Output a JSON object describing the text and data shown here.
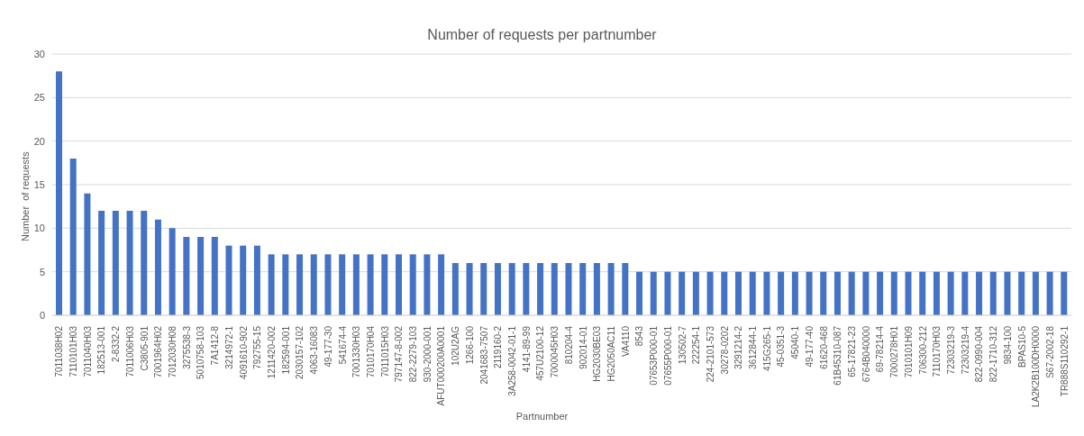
{
  "chart_data": {
    "type": "bar",
    "title": "Number of requests per partnumber",
    "xlabel": "Partnumber",
    "ylabel": "Number  of requests",
    "categories": [
      "7011038H02",
      "7110101H03",
      "7011040H03",
      "182513-001",
      "2-8332-2",
      "7011006H03",
      "C3805-901",
      "7001964H02",
      "7012030H08",
      "3275538-3",
      "5010758-103",
      "7A1412-8",
      "3214972-1",
      "4091610-902",
      "792755-15",
      "1211420-002",
      "182594-001",
      "2030157-102",
      "4063-16083",
      "49-177-30",
      "541674-4",
      "7001330H03",
      "7010170H04",
      "7011015H03",
      "797147-8-002",
      "822-2279-103",
      "930-2000-001",
      "AFUT000200A0001",
      "102U2AG",
      "1266-100",
      "2041683-7507",
      "2119160-2",
      "3A258-0042-01-1",
      "4141-89-99",
      "457U2100-12",
      "7000045H03",
      "810204-4",
      "902014-01",
      "HG2030BE03",
      "HG2050AC11",
      "VA4110",
      "8543",
      "07653P000-01",
      "07655P000-01",
      "130502-7",
      "222254-1",
      "224-2101-573",
      "30278-0202",
      "3291214-2",
      "3612844-1",
      "415G265-1",
      "45-0351-3",
      "45040-1",
      "49-177-40",
      "61620-468",
      "61B45310-087",
      "65-17821-23",
      "6764B040000",
      "69-78214-4",
      "7000278H01",
      "7010101H09",
      "706300-212",
      "7110170H03",
      "72303219-3",
      "72303219-4",
      "822-0990-004",
      "822-1710-312",
      "9834-100",
      "BPAS10-5",
      "LA2K2B100DH0000",
      "S67-2002-18",
      "TR888S110292-1"
    ],
    "values": [
      28,
      18,
      14,
      12,
      12,
      12,
      12,
      11,
      10,
      9,
      9,
      9,
      8,
      8,
      8,
      7,
      7,
      7,
      7,
      7,
      7,
      7,
      7,
      7,
      7,
      7,
      7,
      7,
      6,
      6,
      6,
      6,
      6,
      6,
      6,
      6,
      6,
      6,
      6,
      6,
      6,
      5,
      5,
      5,
      5,
      5,
      5,
      5,
      5,
      5,
      5,
      5,
      5,
      5,
      5,
      5,
      5,
      5,
      5,
      5,
      5,
      5,
      5,
      5,
      5,
      5,
      5,
      5,
      5,
      5,
      5,
      5
    ],
    "color": "#4472c4",
    "ylim": [
      0,
      30
    ],
    "yticks": [
      0,
      5,
      10,
      15,
      20,
      25,
      30
    ],
    "grid": "y"
  }
}
